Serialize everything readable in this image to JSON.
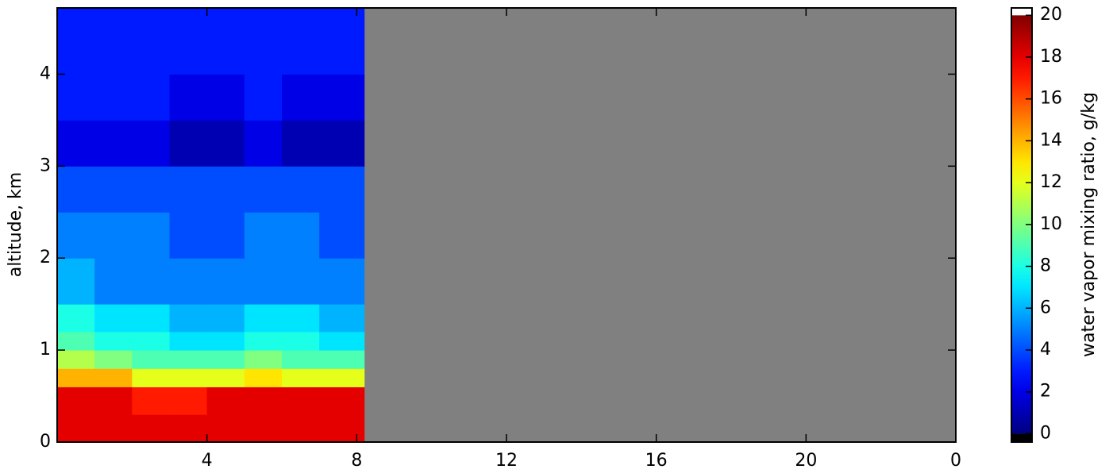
{
  "chart_data": {
    "type": "heatmap",
    "xlabel": null,
    "ylabel": "altitude, km",
    "colorbar_label": "water vapor mixing ratio, g/kg",
    "colormap": "jet",
    "clim": [
      0,
      20
    ],
    "under_color": "#000000",
    "over_color": "#ffffff",
    "missing_color": "#808080",
    "x_bins": [
      0,
      1,
      2,
      3,
      4,
      5,
      6,
      7,
      8.2,
      8.9,
      23,
      24
    ],
    "y_bins": [
      0,
      0.3,
      0.6,
      0.8,
      1.0,
      1.2,
      1.5,
      2.0,
      2.5,
      3.0,
      3.5,
      4.0,
      4.72
    ],
    "values": [
      [
        18,
        18,
        18,
        18,
        18,
        18,
        18,
        18,
        null,
        null,
        null
      ],
      [
        18,
        18,
        17,
        17,
        18,
        18,
        18,
        18,
        null,
        null,
        null
      ],
      [
        14,
        14,
        12,
        12,
        12,
        13,
        12,
        12,
        null,
        null,
        null
      ],
      [
        11,
        10,
        9,
        9,
        9,
        10,
        9,
        9,
        null,
        null,
        null
      ],
      [
        9,
        8,
        8,
        7,
        7,
        8,
        8,
        7,
        null,
        null,
        null
      ],
      [
        8,
        7,
        7,
        6,
        6,
        7,
        7,
        6,
        null,
        null,
        null
      ],
      [
        6,
        5,
        5,
        5,
        5,
        5,
        5,
        5,
        null,
        null,
        null
      ],
      [
        5,
        5,
        5,
        4,
        4,
        5,
        5,
        4,
        null,
        null,
        null
      ],
      [
        4,
        4,
        4,
        4,
        4,
        4,
        4,
        4,
        null,
        null,
        null
      ],
      [
        2,
        2,
        2,
        1,
        1,
        2,
        1,
        1,
        null,
        null,
        null
      ],
      [
        3,
        3,
        3,
        2,
        2,
        3,
        2,
        2,
        null,
        null,
        null
      ],
      [
        3,
        3,
        3,
        3,
        3,
        3,
        3,
        3,
        null,
        null,
        null
      ]
    ],
    "xlim": [
      0,
      24
    ],
    "ylim": [
      0,
      4.72
    ],
    "xticks": [
      4,
      8,
      12,
      16,
      20,
      {
        "value": 24,
        "label": "0"
      }
    ],
    "yticks": [
      0,
      1,
      2,
      3,
      4
    ],
    "cbar_lim": [
      -0.4,
      20.35
    ],
    "cbar_ticks": [
      0,
      2,
      4,
      6,
      8,
      10,
      12,
      14,
      16,
      18,
      20
    ]
  }
}
